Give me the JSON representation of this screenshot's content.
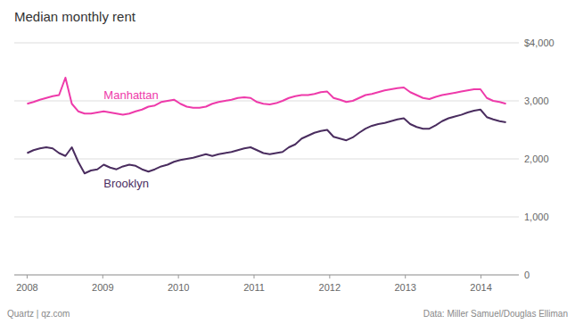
{
  "chart_data": {
    "type": "line",
    "title": "Median monthly rent",
    "annotations": [
      "Quartz | qz.com",
      "Data: Miller Samuel/Douglas Elliman"
    ],
    "x": [
      2008,
      2008.0844,
      2008.1688,
      2008.2532,
      2008.3376,
      2008.422,
      2008.5064,
      2008.5908,
      2008.6752,
      2008.7596,
      2008.844,
      2008.9284,
      2009.0128,
      2009.0972,
      2009.1816,
      2009.266,
      2009.3504,
      2009.4348,
      2009.5192,
      2009.6036,
      2009.688,
      2009.7724,
      2009.8568,
      2009.9412,
      2010.0256,
      2010.11,
      2010.1944,
      2010.2788,
      2010.3632,
      2010.4476,
      2010.532,
      2010.6164,
      2010.7008,
      2010.7852,
      2010.8696,
      2010.954,
      2011.0384,
      2011.1228,
      2011.2072,
      2011.2916,
      2011.376,
      2011.4604,
      2011.5448,
      2011.6292,
      2011.7136,
      2011.798,
      2011.8824,
      2011.9668,
      2012.0512,
      2012.1356,
      2012.22,
      2012.3044,
      2012.3888,
      2012.4732,
      2012.5576,
      2012.642,
      2012.7264,
      2012.8108,
      2012.8952,
      2012.9796,
      2013.064,
      2013.1484,
      2013.2328,
      2013.3172,
      2013.4016,
      2013.486,
      2013.5704,
      2013.6548,
      2013.7392,
      2013.8236,
      2013.908,
      2013.9924,
      2014.0768,
      2014.1612,
      2014.2456,
      2014.33
    ],
    "series": [
      {
        "name": "Manhattan",
        "color": "#ee3aaa",
        "values": [
          2950,
          2980,
          3020,
          3050,
          3080,
          3100,
          3400,
          2950,
          2820,
          2780,
          2780,
          2800,
          2820,
          2800,
          2780,
          2760,
          2780,
          2820,
          2850,
          2900,
          2920,
          2980,
          3000,
          3020,
          2950,
          2900,
          2880,
          2880,
          2900,
          2950,
          2980,
          3000,
          3020,
          3050,
          3060,
          3050,
          2980,
          2950,
          2940,
          2960,
          3000,
          3050,
          3080,
          3100,
          3100,
          3120,
          3150,
          3160,
          3050,
          3020,
          2980,
          3000,
          3050,
          3100,
          3120,
          3150,
          3180,
          3200,
          3220,
          3230,
          3150,
          3100,
          3050,
          3030,
          3070,
          3100,
          3120,
          3140,
          3160,
          3180,
          3200,
          3200,
          3050,
          3000,
          2980,
          2950
        ]
      },
      {
        "name": "Brooklyn",
        "color": "#4a2d5f",
        "values": [
          2100,
          2150,
          2180,
          2200,
          2180,
          2100,
          2050,
          2200,
          1950,
          1750,
          1800,
          1820,
          1900,
          1850,
          1820,
          1870,
          1900,
          1880,
          1820,
          1780,
          1820,
          1870,
          1900,
          1950,
          1980,
          2000,
          2020,
          2050,
          2080,
          2050,
          2080,
          2100,
          2120,
          2150,
          2180,
          2200,
          2150,
          2100,
          2080,
          2100,
          2120,
          2200,
          2250,
          2350,
          2400,
          2450,
          2480,
          2500,
          2380,
          2350,
          2320,
          2370,
          2450,
          2520,
          2570,
          2600,
          2620,
          2650,
          2680,
          2700,
          2600,
          2550,
          2520,
          2520,
          2580,
          2650,
          2700,
          2730,
          2760,
          2800,
          2830,
          2850,
          2720,
          2680,
          2650,
          2630
        ]
      }
    ],
    "xlim": [
      2007.83,
      2014.5
    ],
    "xticks": [
      2008,
      2009,
      2010,
      2011,
      2012,
      2013,
      2014
    ],
    "ylim": [
      0,
      4000
    ],
    "yticks": [
      0,
      {
        "value": 1000,
        "label": "1,000"
      },
      {
        "value": 2000,
        "label": "2,000"
      },
      {
        "value": 3000,
        "label": "3,000"
      },
      {
        "value": 4000,
        "label": "$4,000"
      }
    ],
    "grid": true
  }
}
